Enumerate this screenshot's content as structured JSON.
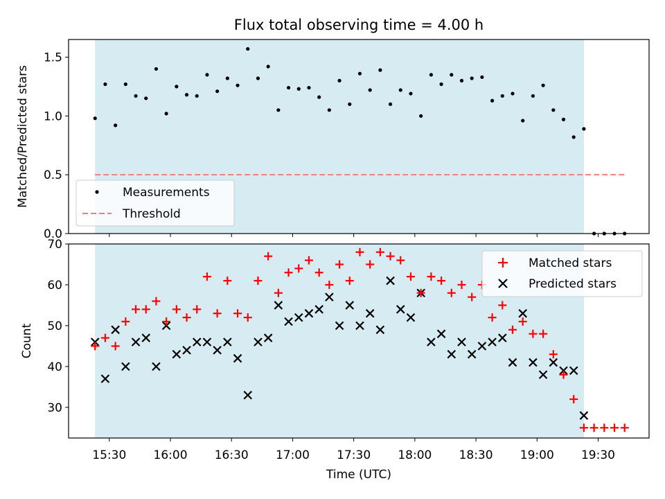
{
  "title": "Flux total observing time = 4.00 h",
  "chart_data": [
    {
      "type": "scatter",
      "ylabel": "Matched/Predicted stars",
      "xlabel": "",
      "ylim": [
        0,
        1.65
      ],
      "yticks": [
        "0.0",
        "0.5",
        "1.0",
        "1.5"
      ],
      "grid": false,
      "legend": "lower-left",
      "observing_window": [
        "15:23",
        "19:23"
      ],
      "threshold": 0.5,
      "threshold_range": [
        "15:23",
        "19:43"
      ],
      "series": [
        {
          "name": "Measurements",
          "color": "#000000",
          "marker": "dot",
          "x": [
            "15:23",
            "15:28",
            "15:33",
            "15:38",
            "15:43",
            "15:48",
            "15:53",
            "15:58",
            "16:03",
            "16:08",
            "16:13",
            "16:18",
            "16:23",
            "16:28",
            "16:33",
            "16:38",
            "16:43",
            "16:48",
            "16:53",
            "16:58",
            "17:03",
            "17:08",
            "17:13",
            "17:18",
            "17:23",
            "17:28",
            "17:33",
            "17:38",
            "17:43",
            "17:48",
            "17:53",
            "17:58",
            "18:03",
            "18:08",
            "18:13",
            "18:18",
            "18:23",
            "18:28",
            "18:33",
            "18:38",
            "18:43",
            "18:48",
            "18:53",
            "18:58",
            "19:03",
            "19:08",
            "19:13",
            "19:18",
            "19:23",
            "19:28",
            "19:33",
            "19:38",
            "19:43"
          ],
          "values": [
            0.98,
            1.27,
            0.92,
            1.27,
            1.17,
            1.15,
            1.4,
            1.02,
            1.25,
            1.18,
            1.17,
            1.35,
            1.21,
            1.32,
            1.26,
            1.57,
            1.32,
            1.42,
            1.05,
            1.24,
            1.23,
            1.24,
            1.16,
            1.05,
            1.3,
            1.1,
            1.36,
            1.22,
            1.39,
            1.1,
            1.22,
            1.19,
            1.0,
            1.35,
            1.27,
            1.35,
            1.3,
            1.32,
            1.33,
            1.13,
            1.17,
            1.19,
            0.96,
            1.17,
            1.26,
            1.05,
            0.97,
            0.82,
            0.89,
            0.0,
            0.0,
            0.0,
            0.0
          ]
        },
        {
          "name": "Threshold",
          "color": "#f08080",
          "style": "dashed"
        }
      ]
    },
    {
      "type": "scatter",
      "xlabel": "Time (UTC)",
      "ylabel": "Count",
      "ylim": [
        22.5,
        70
      ],
      "yticks": [
        "30",
        "40",
        "50",
        "60",
        "70"
      ],
      "xticks": [
        "15:30",
        "16:00",
        "16:30",
        "17:00",
        "17:30",
        "18:00",
        "18:30",
        "19:00",
        "19:30"
      ],
      "xlim": [
        "15:10",
        "19:55"
      ],
      "grid": false,
      "legend": "top-right",
      "observing_window": [
        "15:23",
        "19:23"
      ],
      "series": [
        {
          "name": "Matched stars",
          "color": "#ff0000",
          "marker": "plus",
          "x": [
            "15:23",
            "15:28",
            "15:33",
            "15:38",
            "15:43",
            "15:48",
            "15:53",
            "15:58",
            "16:03",
            "16:08",
            "16:13",
            "16:18",
            "16:23",
            "16:28",
            "16:33",
            "16:38",
            "16:43",
            "16:48",
            "16:53",
            "16:58",
            "17:03",
            "17:08",
            "17:13",
            "17:18",
            "17:23",
            "17:28",
            "17:33",
            "17:38",
            "17:43",
            "17:48",
            "17:53",
            "17:58",
            "18:03",
            "18:08",
            "18:13",
            "18:18",
            "18:23",
            "18:28",
            "18:33",
            "18:38",
            "18:43",
            "18:48",
            "18:53",
            "18:58",
            "19:03",
            "19:08",
            "19:13",
            "19:18",
            "19:23",
            "19:28",
            "19:33",
            "19:38",
            "19:43"
          ],
          "values": [
            45,
            47,
            45,
            51,
            54,
            54,
            56,
            51,
            54,
            52,
            54,
            62,
            53,
            61,
            53,
            52,
            61,
            67,
            58,
            63,
            64,
            66,
            63,
            60,
            65,
            61,
            68,
            65,
            68,
            67,
            66,
            62,
            58,
            62,
            61,
            58,
            60,
            57,
            60,
            52,
            55,
            49,
            51,
            48,
            48,
            43,
            38,
            32,
            25,
            25,
            25,
            25,
            25
          ]
        },
        {
          "name": "Predicted stars",
          "color": "#000000",
          "marker": "x",
          "x": [
            "15:23",
            "15:28",
            "15:33",
            "15:38",
            "15:43",
            "15:48",
            "15:53",
            "15:58",
            "16:03",
            "16:08",
            "16:13",
            "16:18",
            "16:23",
            "16:28",
            "16:33",
            "16:38",
            "16:43",
            "16:48",
            "16:53",
            "16:58",
            "17:03",
            "17:08",
            "17:13",
            "17:18",
            "17:23",
            "17:28",
            "17:33",
            "17:38",
            "17:43",
            "17:48",
            "17:53",
            "17:58",
            "18:03",
            "18:08",
            "18:13",
            "18:18",
            "18:23",
            "18:28",
            "18:33",
            "18:38",
            "18:43",
            "18:48",
            "18:53",
            "18:58",
            "19:03",
            "19:08",
            "19:13",
            "19:18",
            "19:23"
          ],
          "values": [
            46,
            37,
            49,
            40,
            46,
            47,
            40,
            50,
            43,
            44,
            46,
            46,
            44,
            46,
            42,
            33,
            46,
            47,
            55,
            51,
            52,
            53,
            54,
            57,
            50,
            55,
            50,
            53,
            49,
            61,
            54,
            52,
            58,
            46,
            48,
            43,
            46,
            43,
            45,
            46,
            47,
            41,
            53,
            41,
            38,
            41,
            39,
            39,
            28
          ]
        }
      ]
    }
  ]
}
